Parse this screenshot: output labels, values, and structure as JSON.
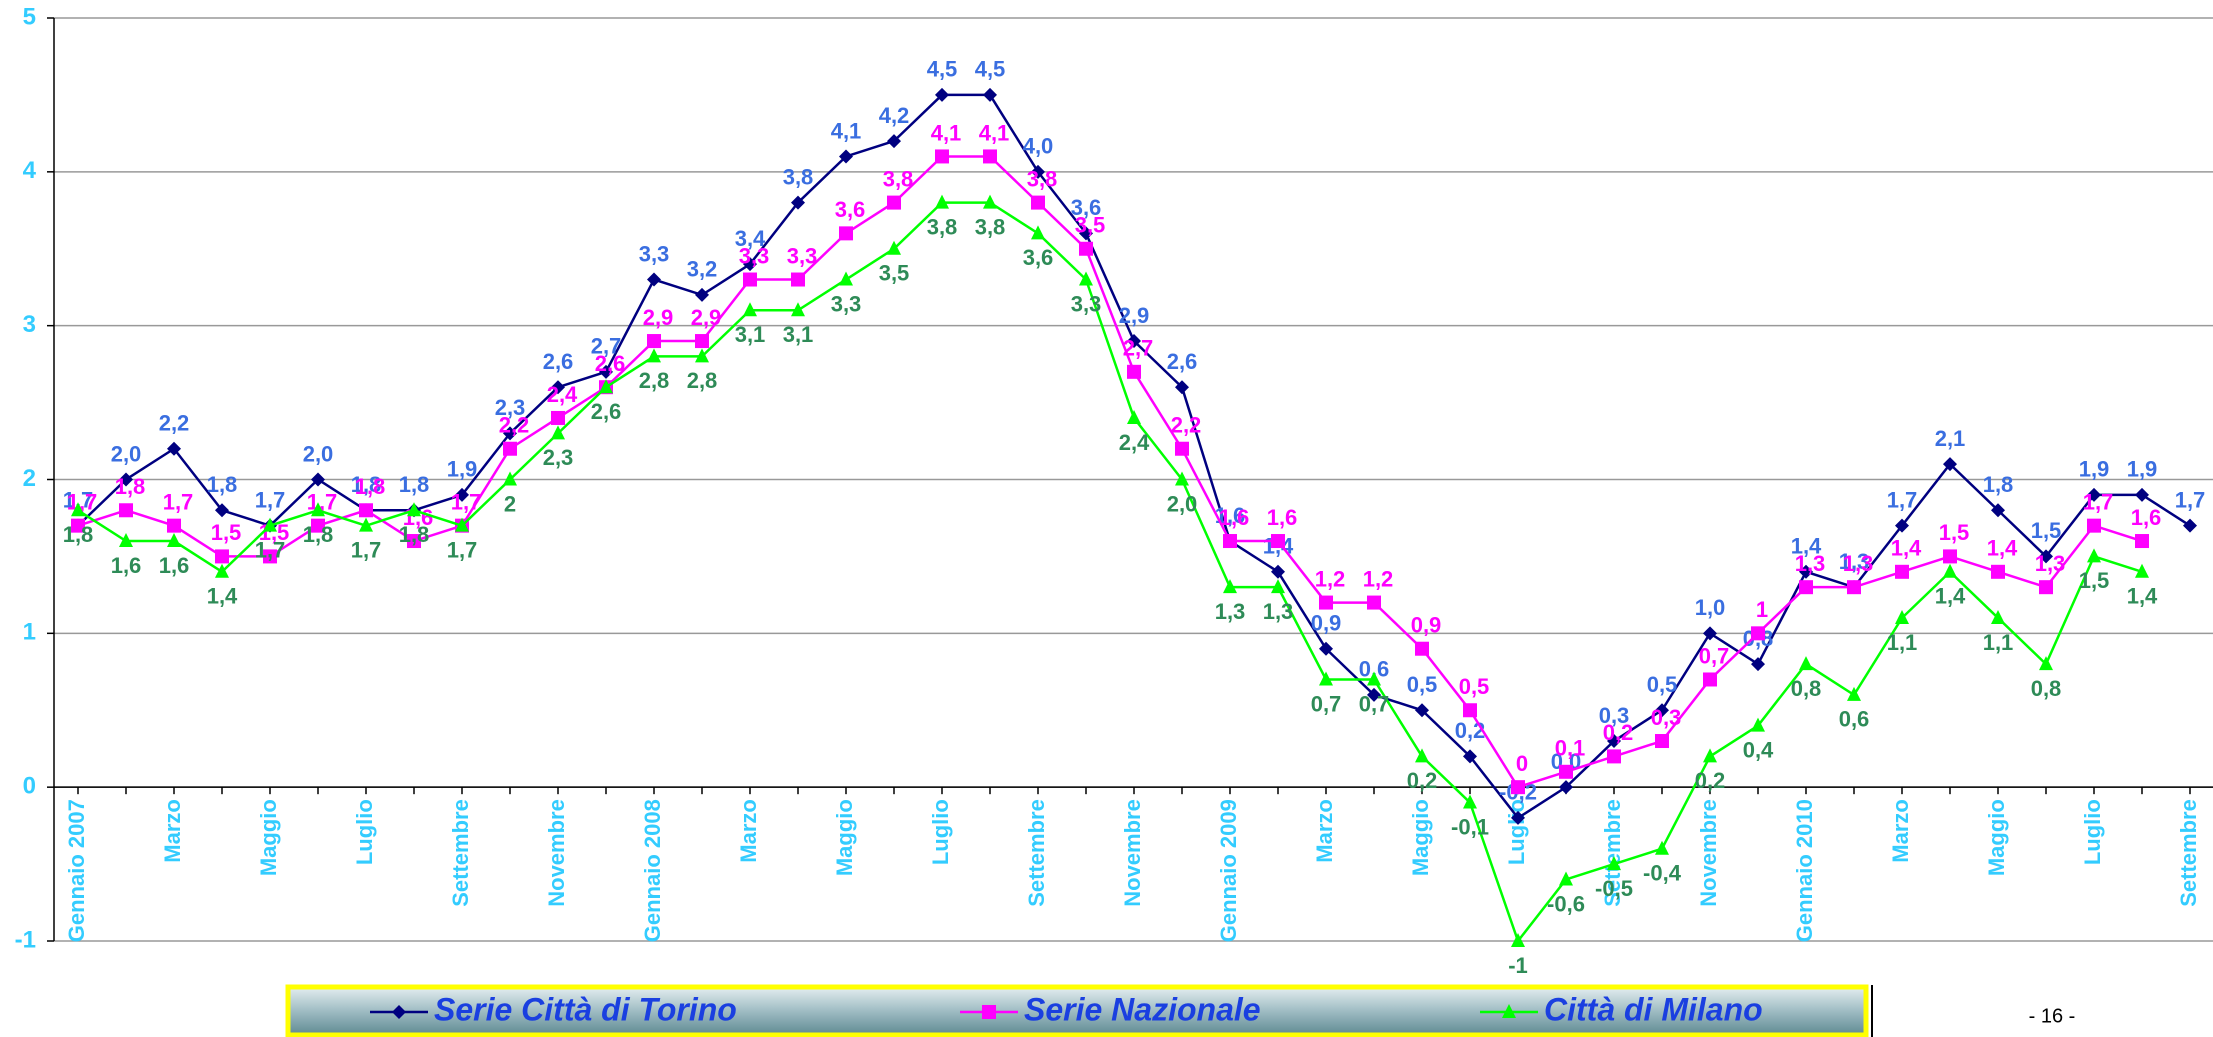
{
  "chart_data": {
    "type": "line",
    "categories": [
      "Gennaio 2007",
      null,
      "Marzo",
      null,
      "Maggio",
      null,
      "Luglio",
      null,
      "Settembre",
      null,
      "Novembre",
      null,
      "Gennaio 2008",
      null,
      "Marzo",
      null,
      "Maggio",
      null,
      "Luglio",
      null,
      "Settembre",
      null,
      "Novembre",
      null,
      "Gennaio 2009",
      null,
      "Marzo",
      null,
      "Maggio",
      null,
      "Luglio",
      null,
      "Settembre",
      null,
      "Novembre",
      null,
      "Gennaio 2010",
      null,
      "Marzo",
      null,
      "Maggio",
      null,
      "Luglio",
      null,
      "Settembre"
    ],
    "ylim": [
      -1,
      5
    ],
    "yticks": [
      -1,
      0,
      1,
      2,
      3,
      4,
      5
    ],
    "grid": true,
    "legend": "bottom",
    "series": [
      {
        "name": "Serie  Città di Torino",
        "color": "#000080",
        "marker": "diamond",
        "label_color": "#3a6ee0",
        "values": [
          1.7,
          2.0,
          2.2,
          1.8,
          1.7,
          2.0,
          1.8,
          1.8,
          1.9,
          2.3,
          2.6,
          2.7,
          3.3,
          3.2,
          3.4,
          3.8,
          4.1,
          4.2,
          4.5,
          4.5,
          4.0,
          3.6,
          2.9,
          2.6,
          1.6,
          1.4,
          0.9,
          0.6,
          0.5,
          0.2,
          -0.2,
          0.0,
          0.3,
          0.5,
          1.0,
          0.8,
          1.4,
          1.3,
          1.7,
          2.1,
          1.8,
          1.5,
          1.9,
          1.9,
          1.7
        ],
        "value_labels": [
          "1,7",
          "2,0",
          "2,2",
          "1,8",
          "1,7",
          "2,0",
          "1,8",
          "1,8",
          "1,9",
          "2,3",
          "2,6",
          "2,7",
          "3,3",
          "3,2",
          "3,4",
          "3,8",
          "4,1",
          "4,2",
          "4,5",
          "4,5",
          "4,0",
          "3,6",
          "2,9",
          "2,6",
          "1,6",
          "1,4",
          "0,9",
          "0,6",
          "0,5",
          "0,2",
          "-0,2",
          "0,0",
          "0,3",
          "0,5",
          "1,0",
          "0,8",
          "1,4",
          "1,3",
          "1,7",
          "2,1",
          "1,8",
          "1,5",
          "1,9",
          "1,9",
          "1,7"
        ]
      },
      {
        "name": "Serie Nazionale",
        "color": "#ff00ff",
        "marker": "square",
        "label_color": "#ff00ff",
        "values": [
          1.7,
          1.8,
          1.7,
          1.5,
          1.5,
          1.7,
          1.8,
          1.6,
          1.7,
          2.2,
          2.4,
          2.6,
          2.9,
          2.9,
          3.3,
          3.3,
          3.6,
          3.8,
          4.1,
          4.1,
          3.8,
          3.5,
          2.7,
          2.2,
          1.6,
          1.6,
          1.2,
          1.2,
          0.9,
          0.5,
          0,
          0.1,
          0.2,
          0.3,
          0.7,
          1,
          1.3,
          1.3,
          1.4,
          1.5,
          1.4,
          1.3,
          1.7,
          1.6,
          null
        ],
        "value_labels": [
          "1,7",
          "1,8",
          "1,7",
          "1,5",
          "1,5",
          "1,7",
          "1,8",
          "1,6",
          "1,7",
          "2,2",
          "2,4",
          "2,6",
          "2,9",
          "2,9",
          "3,3",
          "3,3",
          "3,6",
          "3,8",
          "4,1",
          "4,1",
          "3,8",
          "3,5",
          "2,7",
          "2,2",
          "1,6",
          "1,6",
          "1,2",
          "1,2",
          "0,9",
          "0,5",
          "0",
          "0,1",
          "0,2",
          "0,3",
          "0,7",
          "1",
          "1,3",
          "1,3",
          "1,4",
          "1,5",
          "1,4",
          "1,3",
          "1,7",
          "1,6",
          null
        ]
      },
      {
        "name": "Città di Milano",
        "color": "#00ff00",
        "marker": "triangle",
        "label_color": "#2e8b57",
        "values": [
          1.8,
          1.6,
          1.6,
          1.4,
          1.7,
          1.8,
          1.7,
          1.8,
          1.7,
          2,
          2.3,
          2.6,
          2.8,
          2.8,
          3.1,
          3.1,
          3.3,
          3.5,
          3.8,
          3.8,
          3.6,
          3.3,
          2.4,
          2.0,
          1.3,
          1.3,
          0.7,
          0.7,
          0.2,
          -0.1,
          -1,
          -0.6,
          -0.5,
          -0.4,
          0.2,
          0.4,
          0.8,
          0.6,
          1.1,
          1.4,
          1.1,
          0.8,
          1.5,
          1.4,
          null
        ],
        "value_labels": [
          "1,8",
          "1,6",
          "1,6",
          "1,4",
          "1,7",
          "1,8",
          "1,7",
          "1,8",
          "1,7",
          "2",
          "2,3",
          "2,6",
          "2,8",
          "2,8",
          "3,1",
          "3,1",
          "3,3",
          "3,5",
          "3,8",
          "3,8",
          "3,6",
          "3,3",
          "2,4",
          "2,0",
          "1,3",
          "1,3",
          "0,7",
          "0,7",
          "0,2",
          "-0,1",
          "-1",
          "-0,6",
          "-0,5",
          "-0,4",
          "0,2",
          "0,4",
          "0,8",
          "0,6",
          "1,1",
          "1,4",
          "1,1",
          "0,8",
          "1,5",
          "1,4",
          null
        ]
      }
    ]
  },
  "page_number": "- 16 -"
}
